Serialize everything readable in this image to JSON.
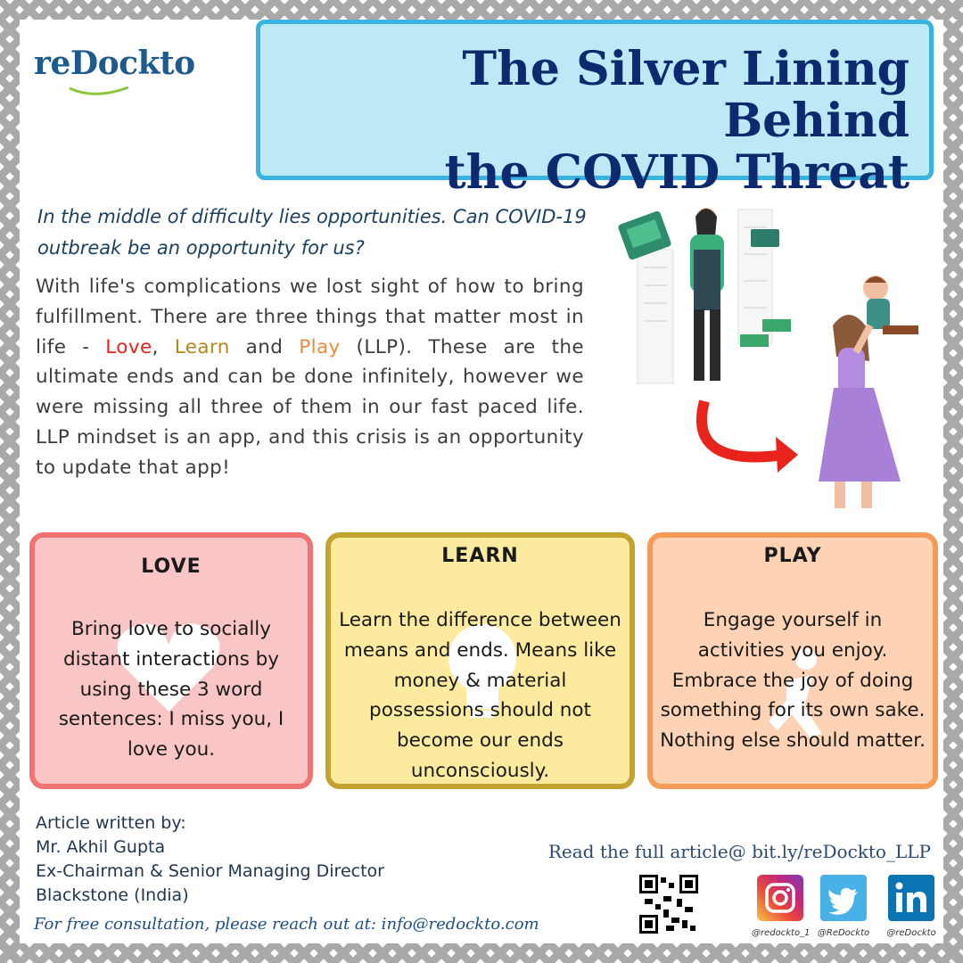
{
  "logo": {
    "text": "reDockto"
  },
  "title": "The Silver Lining Behind\nthe COVID Threat",
  "subtitle": "In the middle of difficulty lies opportunities. Can COVID-19 outbreak be an opportunity for us?",
  "body": {
    "part1": "With life's complications we lost sight of how to bring fulfillment. There are three things that matter most in life - ",
    "love": "Love",
    "sep1": ", ",
    "learn": "Learn",
    "sep2": " and ",
    "play": "Play",
    "part2": " (LLP). These are the ultimate ends and can be done infinitely, however we were missing all three of them in our fast paced life. LLP mindset is an app, and this crisis is an opportunity to update that app!"
  },
  "cards": [
    {
      "title": "LOVE",
      "text": "Bring love to socially distant interactions by using these 3 word sentences: I miss you, I love you.",
      "bg_icon": "heart-icon"
    },
    {
      "title": "LEARN",
      "text": "Learn the difference between means and ends. Means like money & material possessions should not become our ends unconsciously.",
      "bg_icon": "lightbulb-icon"
    },
    {
      "title": "PLAY",
      "text": "Engage yourself in activities you enjoy. Embrace the joy of doing something for its own sake. Nothing else should matter.",
      "bg_icon": "running-person-icon"
    }
  ],
  "author": {
    "line1": "Article written by:",
    "line2": "Mr. Akhil Gupta",
    "line3": "Ex-Chairman & Senior Managing Director",
    "line4": "Blackstone (India)"
  },
  "consult": "For free consultation, please reach out at: info@redockto.com",
  "read_more": "Read the full article@ bit.ly/reDockto_LLP",
  "social": [
    {
      "icon": "instagram-icon",
      "handle": "@redockto_1"
    },
    {
      "icon": "twitter-icon",
      "handle": "@ReDockto"
    },
    {
      "icon": "linkedin-icon",
      "handle": "@reDockto"
    }
  ],
  "colors": {
    "title_bg": "#bde8f6",
    "title_border": "#39b4e0",
    "title_text": "#0e2a6e",
    "love": "#e8231c",
    "learn": "#b8861a",
    "play": "#ee8a3a"
  }
}
